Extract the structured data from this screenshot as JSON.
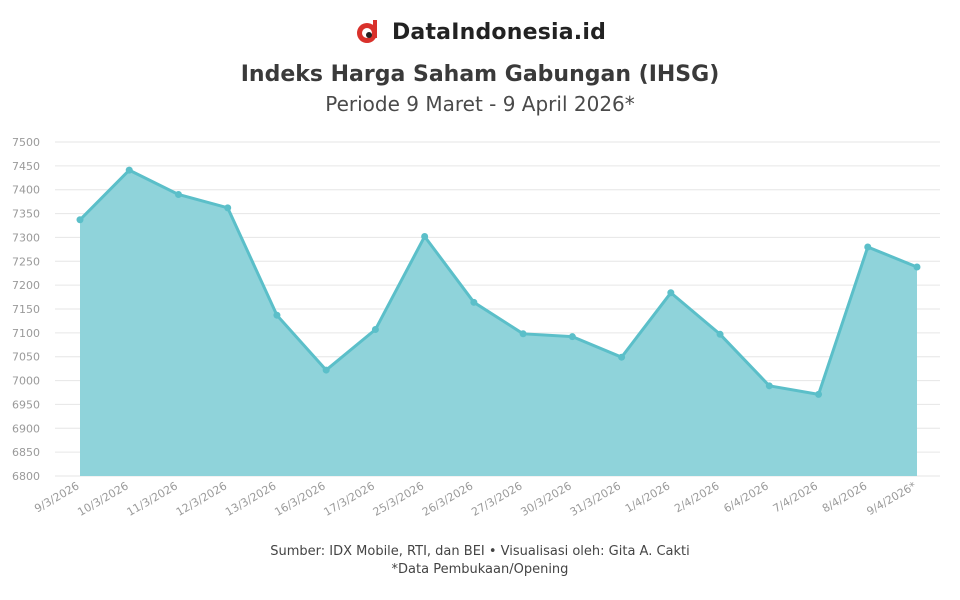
{
  "brand": {
    "name": "DataIndonesia.id",
    "logo_icon": "dataindonesia-logo-icon"
  },
  "chart_data": {
    "type": "area",
    "title": "Indeks Harga Saham Gabungan (IHSG)",
    "subtitle": "Periode 9 Maret - 9 April 2026*",
    "categories": [
      "9/3/2026",
      "10/3/2026",
      "11/3/2026",
      "12/3/2026",
      "13/3/2026",
      "16/3/2026",
      "17/3/2026",
      "25/3/2026",
      "26/3/2026",
      "27/3/2026",
      "30/3/2026",
      "31/3/2026",
      "1/4/2026",
      "2/4/2026",
      "6/4/2026",
      "7/4/2026",
      "8/4/2026",
      "9/4/2026*"
    ],
    "values": [
      7337,
      7441,
      7390,
      7362,
      7137,
      7022,
      7107,
      7302,
      7164,
      7098,
      7092,
      7049,
      7184,
      7097,
      6989,
      6971,
      7280,
      7238
    ],
    "ylim": [
      6800,
      7500
    ],
    "yticks": [
      6800,
      6850,
      6900,
      6950,
      7000,
      7050,
      7100,
      7150,
      7200,
      7250,
      7300,
      7350,
      7400,
      7450,
      7500
    ],
    "grid": true,
    "colors": {
      "fill": "#8fd3da",
      "line": "#5bbfc9",
      "grid": "#e6e6e6",
      "axis_text": "#9a9a9a"
    }
  },
  "footer": {
    "source": "Sumber: IDX Mobile, RTI, dan BEI • Visualisasi oleh: Gita A. Cakti",
    "note": "*Data Pembukaan/Opening"
  }
}
